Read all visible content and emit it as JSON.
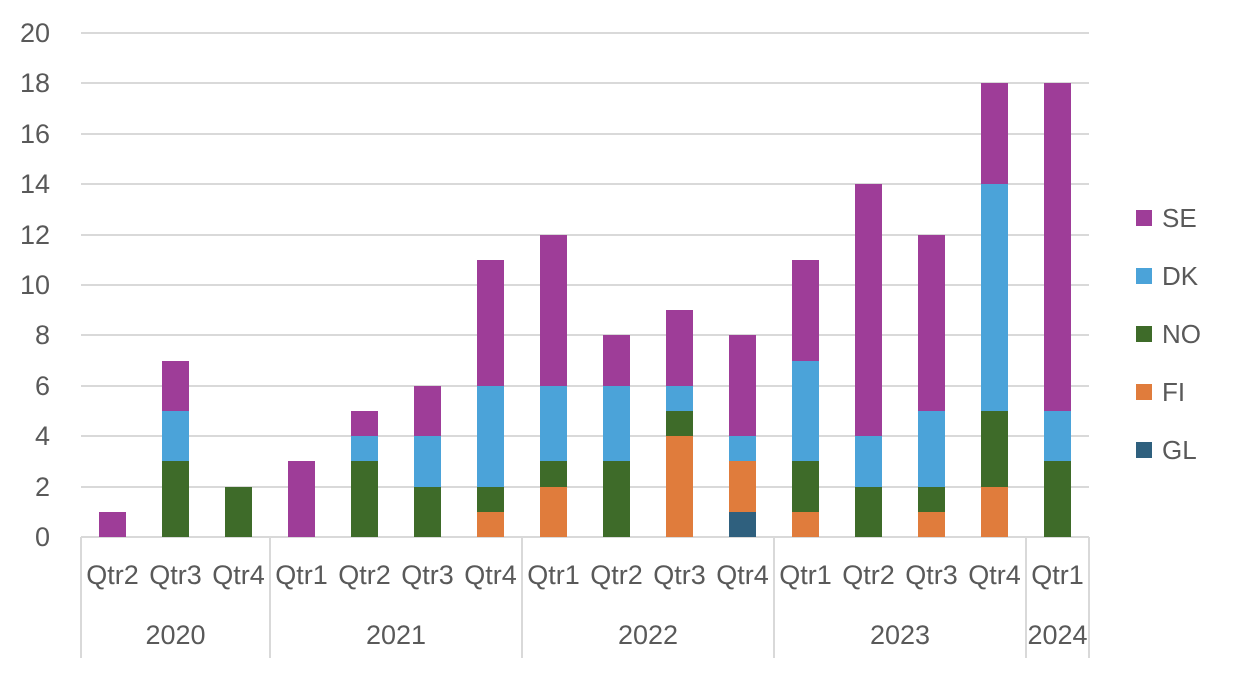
{
  "chart_data": {
    "type": "bar",
    "stacked": true,
    "title": "",
    "xlabel": "",
    "ylabel": "",
    "ylim": [
      0,
      20
    ],
    "yticks": [
      0,
      2,
      4,
      6,
      8,
      10,
      12,
      14,
      16,
      18,
      20
    ],
    "grid": true,
    "legend_position": "right",
    "year_groups": [
      {
        "year": "2020",
        "quarters": [
          "Qtr2",
          "Qtr3",
          "Qtr4"
        ]
      },
      {
        "year": "2021",
        "quarters": [
          "Qtr1",
          "Qtr2",
          "Qtr3",
          "Qtr4"
        ]
      },
      {
        "year": "2022",
        "quarters": [
          "Qtr1",
          "Qtr2",
          "Qtr3",
          "Qtr4"
        ]
      },
      {
        "year": "2023",
        "quarters": [
          "Qtr1",
          "Qtr2",
          "Qtr3",
          "Qtr4"
        ]
      },
      {
        "year": "2024",
        "quarters": [
          "Qtr1"
        ]
      }
    ],
    "categories": [
      "2020 Qtr2",
      "2020 Qtr3",
      "2020 Qtr4",
      "2021 Qtr1",
      "2021 Qtr2",
      "2021 Qtr3",
      "2021 Qtr4",
      "2022 Qtr1",
      "2022 Qtr2",
      "2022 Qtr3",
      "2022 Qtr4",
      "2023 Qtr1",
      "2023 Qtr2",
      "2023 Qtr3",
      "2023 Qtr4",
      "2024 Qtr1"
    ],
    "stack_order_bottom_to_top": [
      "GL",
      "FI",
      "NO",
      "DK",
      "SE"
    ],
    "legend_order_top_to_bottom": [
      "SE",
      "DK",
      "NO",
      "FI",
      "GL"
    ],
    "series": [
      {
        "name": "GL",
        "color": "#2F607E",
        "values": [
          0,
          0,
          0,
          0,
          0,
          0,
          0,
          0,
          0,
          0,
          1,
          0,
          0,
          0,
          0,
          0
        ]
      },
      {
        "name": "FI",
        "color": "#E07C3C",
        "values": [
          0,
          0,
          0,
          0,
          0,
          0,
          1,
          2,
          0,
          4,
          2,
          1,
          0,
          1,
          2,
          0
        ]
      },
      {
        "name": "NO",
        "color": "#3E6B29",
        "values": [
          0,
          3,
          2,
          0,
          3,
          2,
          1,
          1,
          3,
          1,
          0,
          2,
          2,
          1,
          3,
          3
        ]
      },
      {
        "name": "DK",
        "color": "#4BA3D9",
        "values": [
          0,
          2,
          0,
          0,
          1,
          2,
          4,
          3,
          3,
          1,
          1,
          4,
          2,
          3,
          9,
          2
        ]
      },
      {
        "name": "SE",
        "color": "#9E3D98",
        "values": [
          1,
          2,
          0,
          3,
          1,
          2,
          5,
          6,
          2,
          3,
          4,
          4,
          10,
          7,
          4,
          13
        ]
      }
    ]
  },
  "colors": {
    "gridline": "#D9D9D9",
    "axis_text": "#595959",
    "background": "#FFFFFF"
  }
}
